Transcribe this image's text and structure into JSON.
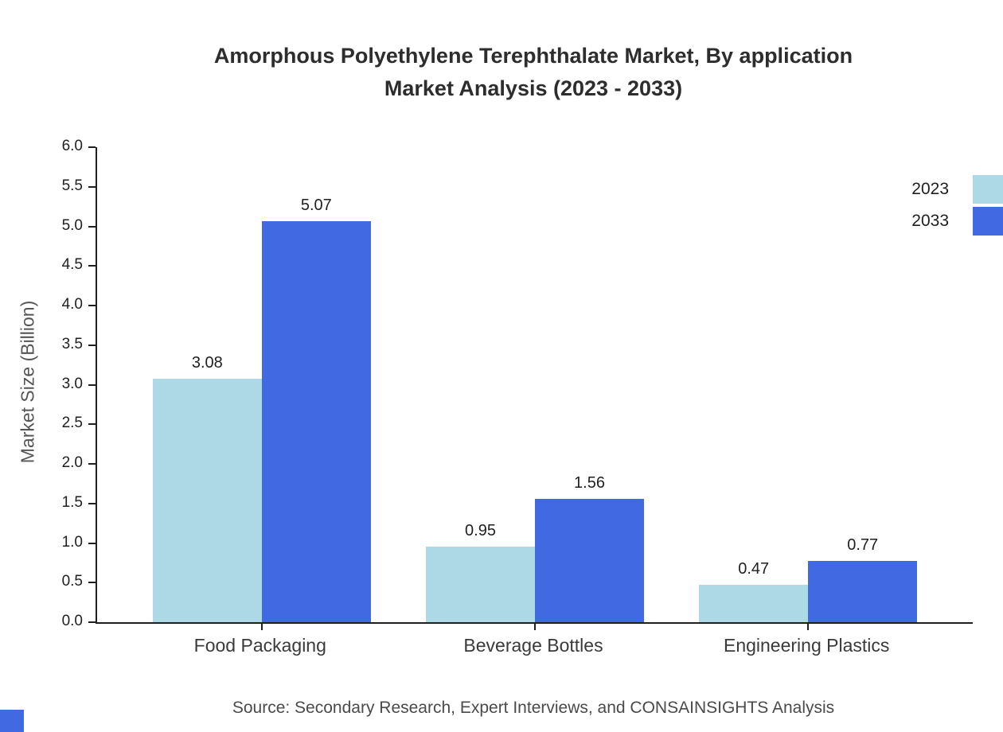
{
  "title": {
    "line1": "Amorphous Polyethylene Terephthalate Market, By application",
    "line2": "Market Analysis (2023 - 2033)"
  },
  "source_note": "Source: Secondary Research, Expert Interviews, and CONSAINSIGHTS Analysis",
  "chart_data": {
    "type": "bar",
    "title": "Amorphous Polyethylene Terephthalate Market, By application Market Analysis (2023 - 2033)",
    "categories": [
      "Food Packaging",
      "Beverage Bottles",
      "Engineering Plastics"
    ],
    "series": [
      {
        "name": "2023",
        "color": "#add8e6",
        "values": [
          3.08,
          0.95,
          0.47
        ]
      },
      {
        "name": "2033",
        "color": "#4169e1",
        "values": [
          5.07,
          1.56,
          0.77
        ]
      }
    ],
    "value_labels": [
      [
        "3.08",
        "0.95",
        "0.47"
      ],
      [
        "5.07",
        "1.56",
        "0.77"
      ]
    ],
    "xlabel": "",
    "ylabel": "Market Size (Billion)",
    "ylim": [
      0.0,
      6.0
    ],
    "yticks": [
      "0.0",
      "0.5",
      "1.0",
      "1.5",
      "2.0",
      "2.5",
      "3.0",
      "3.5",
      "4.0",
      "4.5",
      "5.0",
      "5.5",
      "6.0"
    ],
    "legend_position": "top-right",
    "grid": false
  },
  "colors": {
    "accent": "#4169e1",
    "light_series": "#add8e6",
    "axis": "#1f1f1f",
    "text": "#333333",
    "muted_text": "#4a4a4a"
  }
}
